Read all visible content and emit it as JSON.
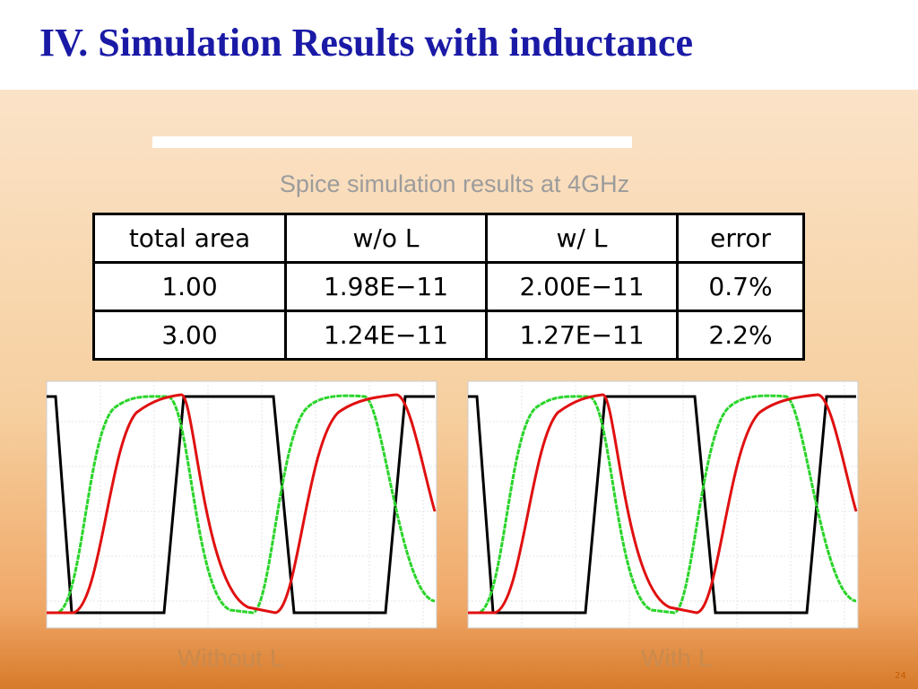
{
  "header": {
    "title": "IV. Simulation Results with inductance"
  },
  "subtitle": "Spice simulation results at 4GHz",
  "table": {
    "header": [
      "total area",
      "w/o L",
      "w/ L",
      "error"
    ],
    "rows": [
      [
        "1.00",
        "1.98E−11",
        "2.00E−11",
        "0.7%"
      ],
      [
        "3.00",
        "1.24E−11",
        "1.27E−11",
        "2.2%"
      ]
    ]
  },
  "captions": [
    "Without L",
    "With L"
  ],
  "page_number": "24"
}
